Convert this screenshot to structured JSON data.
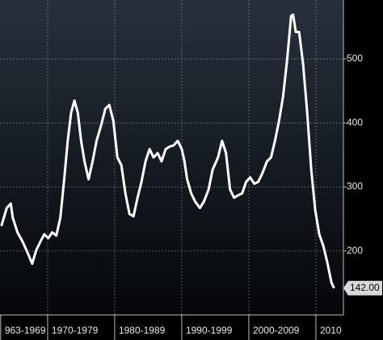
{
  "chart_data": {
    "type": "line",
    "color": "#ffffff",
    "x": [
      1963.1,
      1963.9,
      1964.5,
      1964.8,
      1965.5,
      1966.3,
      1967.1,
      1967.7,
      1968.3,
      1968.9,
      1969.5,
      1970.1,
      1970.7,
      1971.3,
      1971.9,
      1972.5,
      1973.0,
      1973.5,
      1974.0,
      1974.5,
      1975.0,
      1975.5,
      1976.1,
      1976.7,
      1977.3,
      1978.0,
      1978.6,
      1979.2,
      1979.8,
      1980.4,
      1981.0,
      1981.6,
      1982.2,
      1982.8,
      1983.4,
      1984.0,
      1984.6,
      1985.2,
      1985.8,
      1986.4,
      1987.0,
      1987.6,
      1988.2,
      1988.8,
      1989.4,
      1990.0,
      1990.4,
      1990.8,
      1991.4,
      1992.0,
      1992.7,
      1993.3,
      1994.0,
      1994.6,
      1995.4,
      1996.0,
      1996.6,
      1997.2,
      1997.8,
      1998.4,
      1999.0,
      1999.6,
      2000.2,
      2000.8,
      2001.4,
      2002.0,
      2002.7,
      2003.3,
      2003.9,
      2004.5,
      2005.1,
      2005.7,
      2006.3,
      2006.6,
      2007.0,
      2007.5,
      2008.1,
      2008.7,
      2009.3,
      2009.9,
      2010.5,
      2011.1,
      2011.7,
      2012.3,
      2012.7
    ],
    "values": [
      239,
      267,
      274,
      252,
      229,
      214,
      195,
      180,
      201,
      214,
      226,
      220,
      229,
      224,
      252,
      315,
      372,
      416,
      435,
      416,
      372,
      340,
      312,
      340,
      372,
      397,
      422,
      428,
      403,
      346,
      334,
      290,
      258,
      254,
      283,
      308,
      340,
      359,
      346,
      353,
      340,
      359,
      363,
      365,
      372,
      359,
      340,
      312,
      290,
      277,
      267,
      277,
      296,
      327,
      346,
      372,
      353,
      296,
      283,
      287,
      290,
      308,
      315,
      305,
      308,
      321,
      340,
      346,
      372,
      403,
      441,
      498,
      567,
      569,
      542,
      542,
      491,
      416,
      327,
      264,
      226,
      208,
      182,
      151,
      142
    ],
    "value_labels": {
      "84": "142.00"
    },
    "xlim": [
      1962.9,
      2014.1
    ],
    "ylim": [
      100,
      592
    ],
    "xticks": [
      {
        "value": 1963,
        "label": "963-1969"
      },
      {
        "value": 1970,
        "label": "1970-1979"
      },
      {
        "value": 1980,
        "label": "1980-1989"
      },
      {
        "value": 1990,
        "label": "1990-1999"
      },
      {
        "value": 2000,
        "label": "2000-2009"
      },
      {
        "value": 2010,
        "label": "2010"
      }
    ],
    "yticks": [
      200,
      300,
      400,
      500
    ],
    "grid": true
  }
}
